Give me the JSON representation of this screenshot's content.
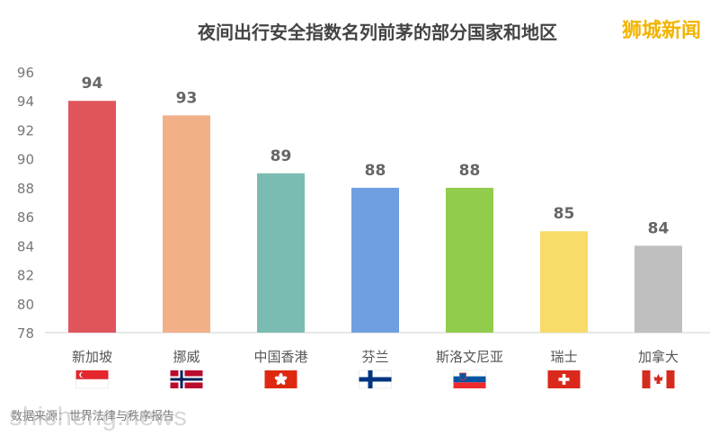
{
  "brand": "狮城新闻",
  "source": "数据来源：世界法律与秩序报告",
  "watermark": "shicheng.news",
  "chart_data": {
    "type": "bar",
    "title": "夜间出行安全指数名列前茅的部分国家和地区",
    "categories": [
      "新加坡",
      "挪威",
      "中国香港",
      "芬兰",
      "斯洛文尼亚",
      "瑞士",
      "加拿大"
    ],
    "values": [
      94,
      93,
      89,
      88,
      88,
      85,
      84
    ],
    "colors": [
      "#e0555c",
      "#f2b088",
      "#7bbcb2",
      "#6f9fe0",
      "#92cc4c",
      "#f7dc6a",
      "#bfbfbf"
    ],
    "flags": [
      "singapore-flag",
      "norway-flag",
      "hong-kong-flag",
      "finland-flag",
      "slovenia-flag",
      "switzerland-flag",
      "canada-flag"
    ],
    "ylim": [
      78,
      96
    ],
    "yticks": [
      78,
      80,
      82,
      84,
      86,
      88,
      90,
      92,
      94,
      96
    ],
    "xlabel": "",
    "ylabel": "",
    "grid": false,
    "legend": "none"
  }
}
